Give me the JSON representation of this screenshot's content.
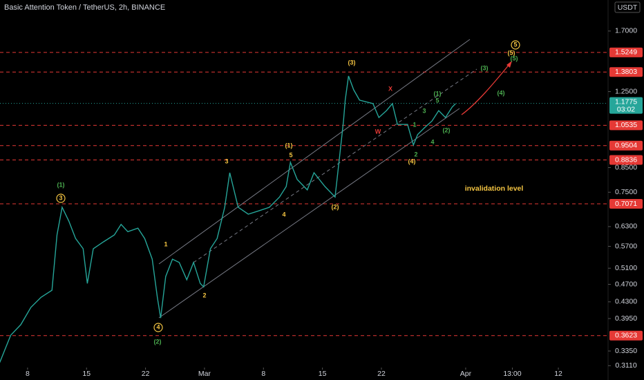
{
  "chart_data": {
    "type": "line",
    "title": "Basic Attention Token / TetherUS, 2h, BINANCE",
    "currency": "USDT",
    "x": [
      3.7,
      5.0,
      6.2,
      7.4,
      8.6,
      9.9,
      10.5,
      11.1,
      11.9,
      12.7,
      13.6,
      14.1,
      14.8,
      16.0,
      17.3,
      18.1,
      18.9,
      20.1,
      20.9,
      21.8,
      22.4,
      22.8,
      23.4,
      24.2,
      25.0,
      25.9,
      26.7,
      27.5,
      27.9,
      28.7,
      29.5,
      30.4,
      31.0,
      32.0,
      33.2,
      34.5,
      35.7,
      36.9,
      37.7,
      38.2,
      39.0,
      40.2,
      41.0,
      42.3,
      43.1,
      43.5,
      44.1,
      44.5,
      44.7,
      45.1,
      45.7,
      46.4,
      48.0,
      48.7,
      49.6,
      50.3,
      50.9,
      52.1,
      52.8,
      53.3,
      54.1,
      55.0,
      55.8,
      56.6,
      57.4,
      57.8
    ],
    "values": [
      0.316,
      0.363,
      0.383,
      0.418,
      0.44,
      0.456,
      0.604,
      0.695,
      0.648,
      0.593,
      0.563,
      0.472,
      0.563,
      0.583,
      0.604,
      0.637,
      0.614,
      0.625,
      0.593,
      0.534,
      0.44,
      0.396,
      0.489,
      0.534,
      0.525,
      0.481,
      0.525,
      0.472,
      0.464,
      0.563,
      0.593,
      0.695,
      0.828,
      0.695,
      0.671,
      0.683,
      0.695,
      0.732,
      0.772,
      0.873,
      0.8,
      0.759,
      0.828,
      0.772,
      0.745,
      0.732,
      0.92,
      1.077,
      1.197,
      1.353,
      1.262,
      1.197,
      1.176,
      1.096,
      1.135,
      1.176,
      1.058,
      1.058,
      0.953,
      1.005,
      1.04,
      1.077,
      1.135,
      1.096,
      1.156,
      1.176
    ],
    "color": "#26a69a",
    "log": true,
    "xlim": [
      3.73,
      75.9
    ],
    "ylim": [
      0.308,
      1.99
    ],
    "xticks": [
      {
        "value": 7,
        "label": "8"
      },
      {
        "value": 14,
        "label": "15"
      },
      {
        "value": 21,
        "label": "22"
      },
      {
        "value": 28,
        "label": "Mar"
      },
      {
        "value": 35,
        "label": "8"
      },
      {
        "value": 42,
        "label": "15"
      },
      {
        "value": 49,
        "label": "22"
      },
      {
        "value": 59,
        "label": "Apr"
      },
      {
        "value": 64.54,
        "label": "13:00"
      },
      {
        "value": 70,
        "label": "12"
      }
    ],
    "yticks": [
      {
        "value": 1.7,
        "label": "1.7000"
      },
      {
        "value": 1.25,
        "label": "1.2500"
      },
      {
        "value": 0.85,
        "label": "0.8500"
      },
      {
        "value": 0.75,
        "label": "0.7500"
      },
      {
        "value": 0.63,
        "label": "0.6300"
      },
      {
        "value": 0.57,
        "label": "0.5700"
      },
      {
        "value": 0.51,
        "label": "0.5100"
      },
      {
        "value": 0.47,
        "label": "0.4700"
      },
      {
        "value": 0.43,
        "label": "0.4300"
      },
      {
        "value": 0.395,
        "label": "0.3950"
      },
      {
        "value": 0.335,
        "label": "0.3350"
      },
      {
        "value": 0.311,
        "label": "0.3110"
      }
    ],
    "levels": [
      1.5249,
      1.3803,
      1.0535,
      0.9504,
      0.8836,
      0.7071,
      0.3623
    ],
    "last_price": 1.1775,
    "countdown": "03:02",
    "annotations": [
      "(1)",
      "3",
      "1",
      "4",
      "(2)",
      "2",
      "3",
      "4",
      "(1)",
      "5",
      "(2)",
      "(3)",
      "X",
      "W",
      "1",
      "3",
      "5",
      "(1)",
      "2",
      "4",
      "(2)",
      "(4)",
      "(3)",
      "(4)",
      "(5)",
      "5",
      "(5)",
      "invalidation level"
    ]
  }
}
